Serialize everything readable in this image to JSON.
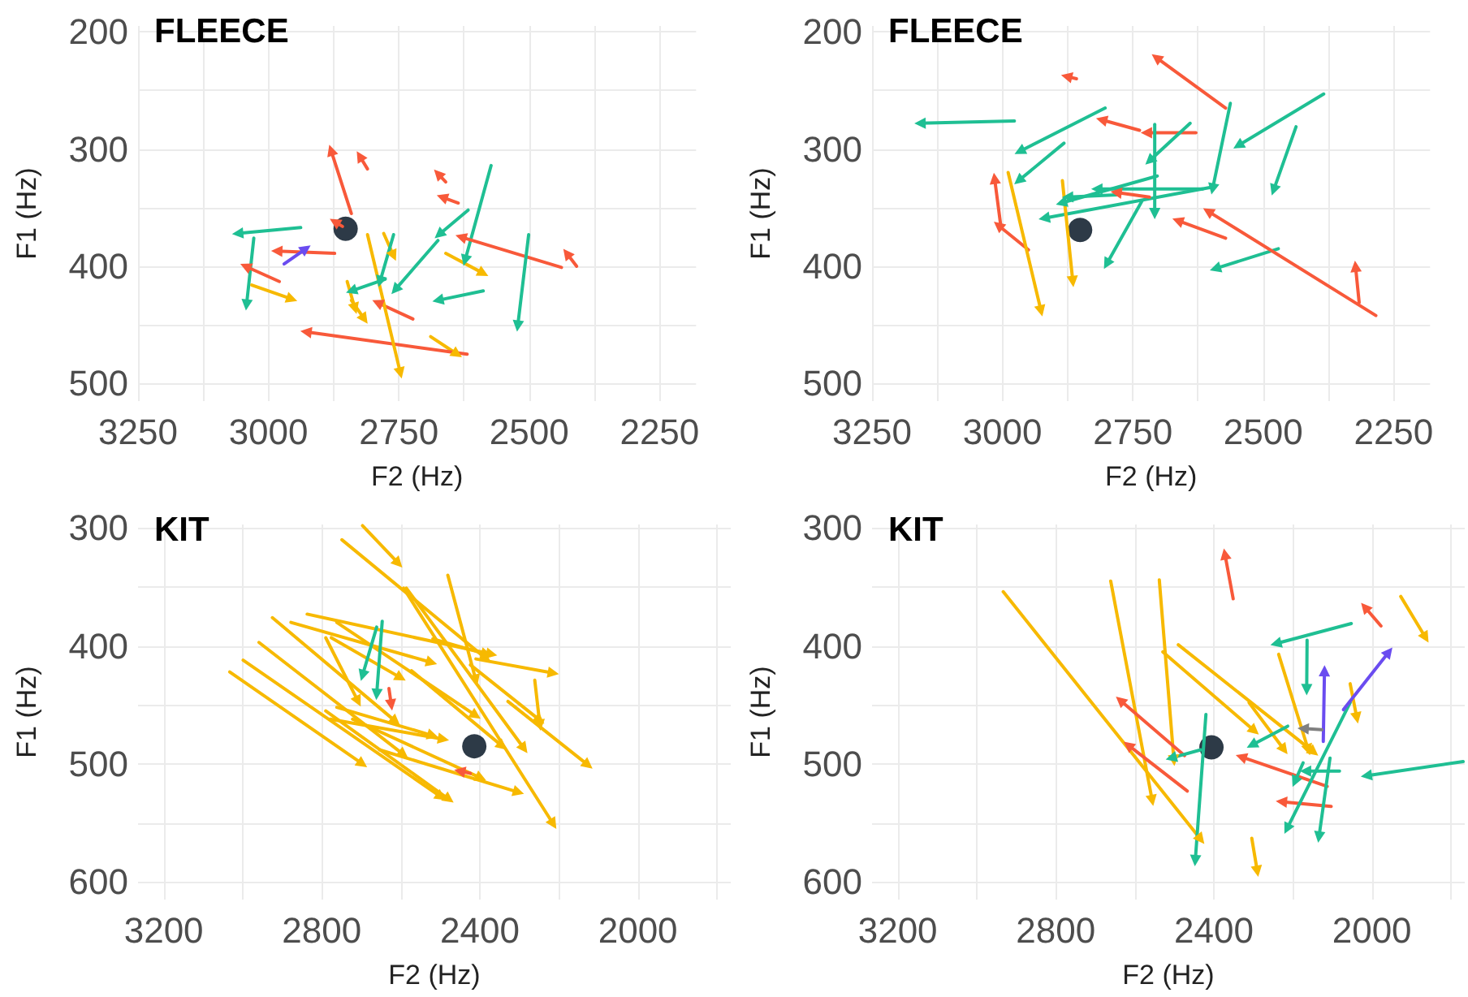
{
  "chart_data": [
    {
      "type": "line",
      "title": "FLEECE",
      "xlabel": "F2 (Hz)",
      "ylabel": "F1 (Hz)",
      "line_style": "solid",
      "grid": true,
      "xlim": [
        3250,
        2180
      ],
      "xticks": [
        3250,
        {
          "value": 3125,
          "label": null
        },
        3000,
        {
          "value": 2875,
          "label": null
        },
        2750,
        {
          "value": 2625,
          "label": null
        },
        2500,
        {
          "value": 2375,
          "label": null
        },
        2250
      ],
      "ylim": [
        515,
        195
      ],
      "yticks": [
        200,
        {
          "value": 250,
          "label": null
        },
        300,
        {
          "value": 350,
          "label": null
        },
        400,
        {
          "value": 450,
          "label": null
        },
        500
      ],
      "marker": "triangle",
      "series": [
        {
          "color": "#f8593a",
          "x": [
            2841,
            2880
          ],
          "values": [
            355,
            301
          ]
        },
        {
          "color": "#f8593a",
          "x": [
            2810,
            2825
          ],
          "values": [
            317,
            306
          ]
        },
        {
          "color": "#f8593a",
          "x": [
            2660,
            2675
          ],
          "values": [
            328,
            321
          ]
        },
        {
          "color": "#f8593a",
          "x": [
            2636,
            2667
          ],
          "values": [
            346,
            341
          ]
        },
        {
          "color": "#1fbf93",
          "x": [
            2573,
            2623
          ],
          "values": [
            314,
            395
          ]
        },
        {
          "color": "#1fbf93",
          "x": [
            2617,
            2673
          ],
          "values": [
            352,
            373
          ]
        },
        {
          "color": "#1fbf93",
          "x": [
            2675,
            2757
          ],
          "values": [
            378,
            420
          ]
        },
        {
          "color": "#f8593a",
          "x": [
            2438,
            2631
          ],
          "values": [
            401,
            375
          ]
        },
        {
          "color": "#f8593a",
          "x": [
            2409,
            2428
          ],
          "values": [
            400,
            389
          ]
        },
        {
          "color": "#1fbf93",
          "x": [
            2501,
            2522
          ],
          "values": [
            373,
            451
          ]
        },
        {
          "color": "#f7b900",
          "x": [
            2660,
            2588
          ],
          "values": [
            389,
            406
          ]
        },
        {
          "color": "#1fbf93",
          "x": [
            2588,
            2675
          ],
          "values": [
            421,
            429
          ]
        },
        {
          "color": "#f7b900",
          "x": [
            2689,
            2638
          ],
          "values": [
            460,
            475
          ]
        },
        {
          "color": "#f8593a",
          "x": [
            2619,
            2928
          ],
          "values": [
            475,
            456
          ]
        },
        {
          "color": "#f8593a",
          "x": [
            2723,
            2791
          ],
          "values": [
            445,
            431
          ]
        },
        {
          "color": "#f7b900",
          "x": [
            2810,
            2747
          ],
          "values": [
            373,
            491
          ]
        },
        {
          "color": "#f7b900",
          "x": [
            2779,
            2760
          ],
          "values": [
            372,
            391
          ]
        },
        {
          "color": "#1fbf93",
          "x": [
            2760,
            2786
          ],
          "values": [
            373,
            413
          ]
        },
        {
          "color": "#1fbf93",
          "x": [
            2776,
            2841
          ],
          "values": [
            411,
            421
          ]
        },
        {
          "color": "#f7b900",
          "x": [
            2849,
            2834
          ],
          "values": [
            413,
            436
          ]
        },
        {
          "color": "#f7b900",
          "x": [
            2841,
            2816
          ],
          "values": [
            429,
            445
          ]
        },
        {
          "color": "#f8593a",
          "x": [
            2873,
            2984
          ],
          "values": [
            389,
            387
          ]
        },
        {
          "color": "#6a4cf0",
          "x": [
            2970,
            2928
          ],
          "values": [
            398,
            385
          ]
        },
        {
          "color": "#1fbf93",
          "x": [
            2938,
            3059
          ],
          "values": [
            367,
            372
          ]
        },
        {
          "color": "#1fbf93",
          "x": [
            3028,
            3042
          ],
          "values": [
            376,
            433
          ]
        },
        {
          "color": "#f8593a",
          "x": [
            2979,
            3044
          ],
          "values": [
            413,
            400
          ]
        },
        {
          "color": "#f7b900",
          "x": [
            3032,
            2955
          ],
          "values": [
            416,
            428
          ]
        },
        {
          "color": "#f8593a",
          "x": [
            2858,
            2873
          ],
          "values": [
            366,
            362
          ]
        },
        {
          "type": "scatter",
          "marker": "circle",
          "color": "#2d3a47",
          "x": [
            2852
          ],
          "values": [
            368
          ]
        }
      ]
    },
    {
      "type": "line",
      "title": "FLEECE",
      "xlabel": "F2 (Hz)",
      "ylabel": "F1 (Hz)",
      "line_style": "solid",
      "grid": true,
      "xlim": [
        3250,
        2180
      ],
      "xticks": [
        3250,
        {
          "value": 3125,
          "label": null
        },
        3000,
        {
          "value": 2875,
          "label": null
        },
        2750,
        {
          "value": 2625,
          "label": null
        },
        2500,
        {
          "value": 2375,
          "label": null
        },
        2250
      ],
      "ylim": [
        515,
        195
      ],
      "yticks": [
        200,
        {
          "value": 250,
          "label": null
        },
        300,
        {
          "value": 350,
          "label": null
        },
        400,
        {
          "value": 450,
          "label": null
        },
        500
      ],
      "marker": "triangle",
      "series": [
        {
          "color": "#1fbf93",
          "x": [
            2977,
            3158
          ],
          "values": [
            276,
            278
          ]
        },
        {
          "color": "#1fbf93",
          "x": [
            2803,
            2967
          ],
          "values": [
            265,
            302
          ]
        },
        {
          "color": "#1fbf93",
          "x": [
            2882,
            2969
          ],
          "values": [
            295,
            327
          ]
        },
        {
          "color": "#f8593a",
          "x": [
            2737,
            2810
          ],
          "values": [
            284,
            275
          ]
        },
        {
          "color": "#f8593a",
          "x": [
            2629,
            2724
          ],
          "values": [
            286,
            286
          ]
        },
        {
          "color": "#f8593a",
          "x": [
            2572,
            2705
          ],
          "values": [
            265,
            222
          ]
        },
        {
          "color": "#f8593a",
          "x": [
            2858,
            2877
          ],
          "values": [
            240,
            238
          ]
        },
        {
          "color": "#1fbf93",
          "x": [
            2563,
            2597
          ],
          "values": [
            261,
            334
          ]
        },
        {
          "color": "#1fbf93",
          "x": [
            2384,
            2548
          ],
          "values": [
            253,
            297
          ]
        },
        {
          "color": "#1fbf93",
          "x": [
            2437,
            2480
          ],
          "values": [
            281,
            335
          ]
        },
        {
          "color": "#1fbf93",
          "x": [
            2640,
            2718
          ],
          "values": [
            278,
            310
          ]
        },
        {
          "color": "#1fbf93",
          "x": [
            2708,
            2708
          ],
          "values": [
            279,
            355
          ]
        },
        {
          "color": "#1fbf93",
          "x": [
            2592,
            2920
          ],
          "values": [
            332,
            359
          ]
        },
        {
          "color": "#1fbf93",
          "x": [
            2703,
            2887
          ],
          "values": [
            323,
            346
          ]
        },
        {
          "color": "#1fbf93",
          "x": [
            2616,
            2819
          ],
          "values": [
            334,
            334
          ]
        },
        {
          "color": "#1fbf93",
          "x": [
            2732,
            2800
          ],
          "values": [
            344,
            398
          ]
        },
        {
          "color": "#1fbf93",
          "x": [
            2471,
            2592
          ],
          "values": [
            385,
            402
          ]
        },
        {
          "color": "#f8593a",
          "x": [
            2572,
            2664
          ],
          "values": [
            376,
            361
          ]
        },
        {
          "color": "#f8593a",
          "x": [
            2718,
            2782
          ],
          "values": [
            341,
            337
          ]
        },
        {
          "color": "#f8593a",
          "x": [
            2284,
            2606
          ],
          "values": [
            442,
            353
          ]
        },
        {
          "color": "#f8593a",
          "x": [
            2316,
            2323
          ],
          "values": [
            431,
            400
          ]
        },
        {
          "color": "#f8593a",
          "x": [
            2950,
            3008
          ],
          "values": [
            386,
            365
          ]
        },
        {
          "color": "#f8593a",
          "x": [
            3003,
            3015
          ],
          "values": [
            366,
            325
          ]
        },
        {
          "color": "#f7b900",
          "x": [
            2989,
            2926
          ],
          "values": [
            320,
            438
          ]
        },
        {
          "color": "#f7b900",
          "x": [
            2885,
            2865
          ],
          "values": [
            327,
            413
          ]
        },
        {
          "color": "#1fbf93",
          "x": [
            2781,
            2875
          ],
          "values": [
            339,
            341
          ]
        },
        {
          "type": "scatter",
          "marker": "circle",
          "color": "#2d3a47",
          "x": [
            2851
          ],
          "values": [
            369
          ]
        }
      ]
    },
    {
      "type": "line",
      "title": "KIT",
      "xlabel": "F2 (Hz)",
      "ylabel": "F1 (Hz)",
      "line_style": "solid",
      "grid": true,
      "xlim": [
        3265,
        1765
      ],
      "xticks": [
        3200,
        {
          "value": 3000,
          "label": null
        },
        2800,
        {
          "value": 2600,
          "label": null
        },
        2400,
        {
          "value": 2200,
          "label": null
        },
        2000,
        {
          "value": 1800,
          "label": null
        }
      ],
      "ylim": [
        615,
        297
      ],
      "yticks": [
        300,
        {
          "value": 350,
          "label": null
        },
        400,
        {
          "value": 450,
          "label": null
        },
        500,
        {
          "value": 550,
          "label": null
        },
        600
      ],
      "marker": "triangle",
      "series": [
        {
          "color": "#f7b900",
          "x": [
            2697,
            2606
          ],
          "values": [
            298,
            330
          ]
        },
        {
          "color": "#f7b900",
          "x": [
            2749,
            2383
          ],
          "values": [
            310,
            411
          ]
        },
        {
          "color": "#f7b900",
          "x": [
            2586,
            2288
          ],
          "values": [
            351,
            487
          ]
        },
        {
          "color": "#f7b900",
          "x": [
            2481,
            2410
          ],
          "values": [
            340,
            429
          ]
        },
        {
          "color": "#f7b900",
          "x": [
            2593,
            2214
          ],
          "values": [
            351,
            551
          ]
        },
        {
          "color": "#f7b900",
          "x": [
            2410,
            2214
          ],
          "values": [
            411,
            423
          ]
        },
        {
          "color": "#f7b900",
          "x": [
            2837,
            2370
          ],
          "values": [
            373,
            407
          ]
        },
        {
          "color": "#f7b900",
          "x": [
            2762,
            2410
          ],
          "values": [
            380,
            459
          ]
        },
        {
          "color": "#f7b900",
          "x": [
            2925,
            2613
          ],
          "values": [
            376,
            464
          ]
        },
        {
          "color": "#f7b900",
          "x": [
            2878,
            2522
          ],
          "values": [
            380,
            414
          ]
        },
        {
          "color": "#f7b900",
          "x": [
            2959,
            2593
          ],
          "values": [
            397,
            492
          ]
        },
        {
          "color": "#f7b900",
          "x": [
            2999,
            2498
          ],
          "values": [
            412,
            528
          ]
        },
        {
          "color": "#f7b900",
          "x": [
            3033,
            2697
          ],
          "values": [
            422,
            500
          ]
        },
        {
          "color": "#f7b900",
          "x": [
            2790,
            2708
          ],
          "values": [
            393,
            447
          ]
        },
        {
          "color": "#f7b900",
          "x": [
            2776,
            2600
          ],
          "values": [
            393,
            427
          ]
        },
        {
          "color": "#f7b900",
          "x": [
            2573,
            2343
          ],
          "values": [
            421,
            485
          ]
        },
        {
          "color": "#f7b900",
          "x": [
            2722,
            2397
          ],
          "values": [
            462,
            512
          ]
        },
        {
          "color": "#f7b900",
          "x": [
            2779,
            2492
          ],
          "values": [
            462,
            479
          ]
        },
        {
          "color": "#f7b900",
          "x": [
            2654,
            2302
          ],
          "values": [
            488,
            524
          ]
        },
        {
          "color": "#f7b900",
          "x": [
            2261,
            2248
          ],
          "values": [
            429,
            467
          ]
        },
        {
          "color": "#f7b900",
          "x": [
            2329,
            2126
          ],
          "values": [
            447,
            501
          ]
        },
        {
          "color": "#f7b900",
          "x": [
            2424,
            2248
          ],
          "values": [
            416,
            463
          ]
        },
        {
          "color": "#f7b900",
          "x": [
            2519,
            2383
          ],
          "values": [
            394,
            407
          ]
        },
        {
          "color": "#f7b900",
          "x": [
            2790,
            2478
          ],
          "values": [
            455,
            530
          ]
        },
        {
          "color": "#f7b900",
          "x": [
            2762,
            2519
          ],
          "values": [
            452,
            476
          ]
        },
        {
          "color": "#1fbf93",
          "x": [
            2647,
            2661
          ],
          "values": [
            379,
            441
          ]
        },
        {
          "color": "#1fbf93",
          "x": [
            2661,
            2697
          ],
          "values": [
            384,
            425
          ]
        },
        {
          "color": "#f8593a",
          "x": [
            2630,
            2624
          ],
          "values": [
            436,
            450
          ]
        },
        {
          "color": "#f8593a",
          "x": [
            2424,
            2451
          ],
          "values": [
            508,
            506
          ]
        },
        {
          "type": "scatter",
          "marker": "circle",
          "color": "#2d3a47",
          "x": [
            2414
          ],
          "values": [
            485
          ]
        }
      ]
    },
    {
      "type": "line",
      "title": "KIT",
      "xlabel": "F2 (Hz)",
      "ylabel": "F1 (Hz)",
      "line_style": "solid",
      "grid": true,
      "xlim": [
        3265,
        1765
      ],
      "xticks": [
        3200,
        {
          "value": 3000,
          "label": null
        },
        2800,
        {
          "value": 2600,
          "label": null
        },
        2400,
        {
          "value": 2200,
          "label": null
        },
        2000,
        {
          "value": 1800,
          "label": null
        }
      ],
      "ylim": [
        615,
        297
      ],
      "yticks": [
        300,
        {
          "value": 350,
          "label": null
        },
        400,
        {
          "value": 450,
          "label": null
        },
        500,
        {
          "value": 550,
          "label": null
        },
        600
      ],
      "marker": "triangle",
      "series": [
        {
          "color": "#f7b900",
          "x": [
            2933,
            2433
          ],
          "values": [
            354,
            564
          ]
        },
        {
          "color": "#f7b900",
          "x": [
            2661,
            2556
          ],
          "values": [
            345,
            531
          ]
        },
        {
          "color": "#f7b900",
          "x": [
            2538,
            2501
          ],
          "values": [
            344,
            497
          ]
        },
        {
          "color": "#f7b900",
          "x": [
            2529,
            2297
          ],
          "values": [
            405,
            472
          ]
        },
        {
          "color": "#f7b900",
          "x": [
            2490,
            2147
          ],
          "values": [
            399,
            490
          ]
        },
        {
          "color": "#f7b900",
          "x": [
            2311,
            2222
          ],
          "values": [
            448,
            488
          ]
        },
        {
          "color": "#f7b900",
          "x": [
            2236,
            2161
          ],
          "values": [
            407,
            488
          ]
        },
        {
          "color": "#f7b900",
          "x": [
            2055,
            2038
          ],
          "values": [
            432,
            461
          ]
        },
        {
          "color": "#f7b900",
          "x": [
            1927,
            1864
          ],
          "values": [
            358,
            393
          ]
        },
        {
          "color": "#f7b900",
          "x": [
            2304,
            2290
          ],
          "values": [
            563,
            591
          ]
        },
        {
          "color": "#f8593a",
          "x": [
            2351,
            2372
          ],
          "values": [
            360,
            322
          ]
        },
        {
          "color": "#f8593a",
          "x": [
            1977,
            2018
          ],
          "values": [
            383,
            367
          ]
        },
        {
          "color": "#f8593a",
          "x": [
            2474,
            2637
          ],
          "values": [
            493,
            446
          ]
        },
        {
          "color": "#f8593a",
          "x": [
            2467,
            2617
          ],
          "values": [
            523,
            484
          ]
        },
        {
          "color": "#f8593a",
          "x": [
            2113,
            2331
          ],
          "values": [
            519,
            494
          ]
        },
        {
          "color": "#f8593a",
          "x": [
            2103,
            2229
          ],
          "values": [
            536,
            532
          ]
        },
        {
          "color": "#1fbf93",
          "x": [
            2052,
            2243
          ],
          "values": [
            381,
            398
          ]
        },
        {
          "color": "#1fbf93",
          "x": [
            2164,
            2165
          ],
          "values": [
            395,
            437
          ]
        },
        {
          "color": "#1fbf93",
          "x": [
            2213,
            2304
          ],
          "values": [
            468,
            484
          ]
        },
        {
          "color": "#1fbf93",
          "x": [
            1769,
            2014
          ],
          "values": [
            498,
            510
          ]
        },
        {
          "color": "#1fbf93",
          "x": [
            2420,
            2447
          ],
          "values": [
            458,
            582
          ]
        },
        {
          "color": "#1fbf93",
          "x": [
            2433,
            2508
          ],
          "values": [
            488,
            495
          ]
        },
        {
          "color": "#1fbf93",
          "x": [
            2055,
            2215
          ],
          "values": [
            448,
            555
          ]
        },
        {
          "color": "#1fbf93",
          "x": [
            2106,
            2134
          ],
          "values": [
            495,
            562
          ]
        },
        {
          "color": "#1fbf93",
          "x": [
            2174,
            2195
          ],
          "values": [
            499,
            515
          ]
        },
        {
          "color": "#1fbf93",
          "x": [
            2082,
            2168
          ],
          "values": [
            506,
            506
          ]
        },
        {
          "color": "#6a4cf0",
          "x": [
            2123,
            2120
          ],
          "values": [
            481,
            421
          ]
        },
        {
          "color": "#6a4cf0",
          "x": [
            2072,
            1957
          ],
          "values": [
            454,
            405
          ]
        },
        {
          "color": "#808080",
          "x": [
            2127,
            2174
          ],
          "values": [
            471,
            470
          ]
        },
        {
          "type": "scatter",
          "marker": "circle",
          "color": "#2d3a47",
          "x": [
            2406
          ],
          "values": [
            486
          ]
        }
      ]
    }
  ]
}
